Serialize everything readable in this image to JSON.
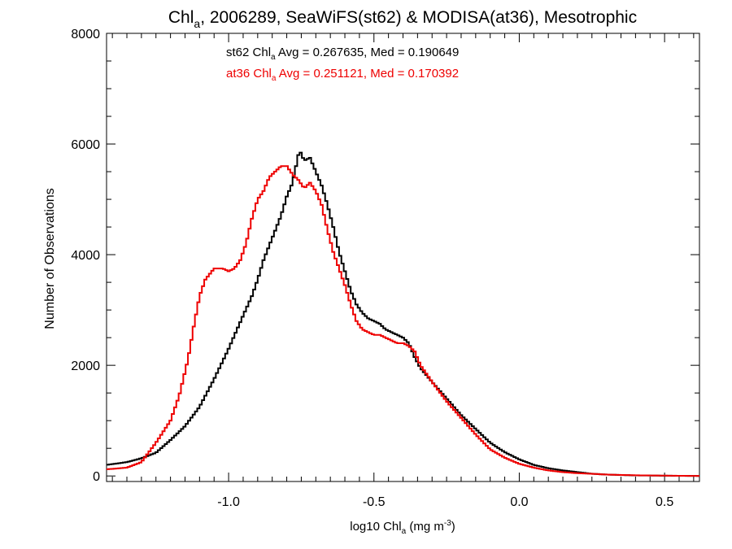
{
  "chart_data": {
    "type": "line",
    "title": {
      "main": "Chl",
      "sub": "a",
      "rest": ", 2006289, SeaWiFS(st62) & MODISA(at36), Mesotrophic"
    },
    "xlabel": {
      "pre": "log10 Chl",
      "sub": "a",
      "mid": " (mg m",
      "sup": "-3",
      "post": ")"
    },
    "ylabel": "Number of Observations",
    "xlim": [
      -1.42,
      0.62
    ],
    "ylim": [
      -100,
      8000
    ],
    "xticks": [
      -1.0,
      -0.5,
      0.0,
      0.5
    ],
    "xtick_labels": [
      "-1.0",
      "-0.5",
      "0.0",
      "0.5"
    ],
    "yticks": [
      0,
      2000,
      4000,
      6000,
      8000
    ],
    "ytick_labels": [
      "0",
      "2000",
      "4000",
      "6000",
      "8000"
    ],
    "grid": false,
    "legend_position": "top-center",
    "series": [
      {
        "name": "st62",
        "color": "#000000",
        "annotation": {
          "pre": "st62 Chl",
          "sub": "a",
          "post": " Avg = 0.267635, Med = 0.190649"
        },
        "points": [
          [
            -1.42,
            200
          ],
          [
            -1.35,
            250
          ],
          [
            -1.3,
            320
          ],
          [
            -1.25,
            420
          ],
          [
            -1.2,
            650
          ],
          [
            -1.15,
            900
          ],
          [
            -1.1,
            1250
          ],
          [
            -1.05,
            1750
          ],
          [
            -1.0,
            2300
          ],
          [
            -0.95,
            2900
          ],
          [
            -0.92,
            3250
          ],
          [
            -0.9,
            3550
          ],
          [
            -0.88,
            3900
          ],
          [
            -0.85,
            4300
          ],
          [
            -0.82,
            4700
          ],
          [
            -0.8,
            5050
          ],
          [
            -0.78,
            5300
          ],
          [
            -0.76,
            5800
          ],
          [
            -0.755,
            5880
          ],
          [
            -0.74,
            5700
          ],
          [
            -0.72,
            5750
          ],
          [
            -0.7,
            5500
          ],
          [
            -0.68,
            5250
          ],
          [
            -0.66,
            4900
          ],
          [
            -0.64,
            4500
          ],
          [
            -0.62,
            4050
          ],
          [
            -0.6,
            3700
          ],
          [
            -0.58,
            3350
          ],
          [
            -0.56,
            3100
          ],
          [
            -0.54,
            2950
          ],
          [
            -0.52,
            2850
          ],
          [
            -0.5,
            2800
          ],
          [
            -0.48,
            2750
          ],
          [
            -0.46,
            2650
          ],
          [
            -0.44,
            2600
          ],
          [
            -0.42,
            2550
          ],
          [
            -0.4,
            2500
          ],
          [
            -0.38,
            2400
          ],
          [
            -0.36,
            2150
          ],
          [
            -0.34,
            1950
          ],
          [
            -0.3,
            1700
          ],
          [
            -0.25,
            1400
          ],
          [
            -0.2,
            1100
          ],
          [
            -0.15,
            850
          ],
          [
            -0.1,
            600
          ],
          [
            -0.05,
            430
          ],
          [
            0.0,
            300
          ],
          [
            0.05,
            200
          ],
          [
            0.1,
            140
          ],
          [
            0.15,
            100
          ],
          [
            0.2,
            70
          ],
          [
            0.25,
            40
          ],
          [
            0.3,
            25
          ],
          [
            0.4,
            10
          ],
          [
            0.5,
            5
          ],
          [
            0.62,
            0
          ]
        ]
      },
      {
        "name": "at36",
        "color": "#ee0000",
        "annotation": {
          "pre": "at36 Chl",
          "sub": "a",
          "post": " Avg = 0.251121, Med = 0.170392"
        },
        "points": [
          [
            -1.42,
            120
          ],
          [
            -1.35,
            150
          ],
          [
            -1.3,
            250
          ],
          [
            -1.25,
            600
          ],
          [
            -1.2,
            1000
          ],
          [
            -1.17,
            1450
          ],
          [
            -1.14,
            2100
          ],
          [
            -1.12,
            2700
          ],
          [
            -1.1,
            3250
          ],
          [
            -1.08,
            3550
          ],
          [
            -1.05,
            3750
          ],
          [
            -1.02,
            3750
          ],
          [
            -1.0,
            3700
          ],
          [
            -0.98,
            3750
          ],
          [
            -0.96,
            3900
          ],
          [
            -0.94,
            4200
          ],
          [
            -0.92,
            4650
          ],
          [
            -0.9,
            5000
          ],
          [
            -0.88,
            5150
          ],
          [
            -0.86,
            5400
          ],
          [
            -0.84,
            5500
          ],
          [
            -0.82,
            5600
          ],
          [
            -0.8,
            5600
          ],
          [
            -0.78,
            5450
          ],
          [
            -0.76,
            5350
          ],
          [
            -0.74,
            5200
          ],
          [
            -0.72,
            5300
          ],
          [
            -0.7,
            5150
          ],
          [
            -0.68,
            4900
          ],
          [
            -0.66,
            4450
          ],
          [
            -0.64,
            4050
          ],
          [
            -0.62,
            3750
          ],
          [
            -0.6,
            3450
          ],
          [
            -0.58,
            3100
          ],
          [
            -0.56,
            2800
          ],
          [
            -0.54,
            2650
          ],
          [
            -0.52,
            2600
          ],
          [
            -0.5,
            2550
          ],
          [
            -0.48,
            2550
          ],
          [
            -0.46,
            2500
          ],
          [
            -0.44,
            2450
          ],
          [
            -0.42,
            2400
          ],
          [
            -0.4,
            2400
          ],
          [
            -0.38,
            2350
          ],
          [
            -0.36,
            2250
          ],
          [
            -0.34,
            2000
          ],
          [
            -0.3,
            1700
          ],
          [
            -0.25,
            1350
          ],
          [
            -0.2,
            1050
          ],
          [
            -0.15,
            750
          ],
          [
            -0.1,
            480
          ],
          [
            -0.05,
            330
          ],
          [
            0.0,
            220
          ],
          [
            0.05,
            150
          ],
          [
            0.1,
            100
          ],
          [
            0.15,
            70
          ],
          [
            0.2,
            50
          ],
          [
            0.25,
            40
          ],
          [
            0.3,
            25
          ],
          [
            0.4,
            12
          ],
          [
            0.5,
            6
          ],
          [
            0.62,
            0
          ]
        ]
      }
    ]
  }
}
